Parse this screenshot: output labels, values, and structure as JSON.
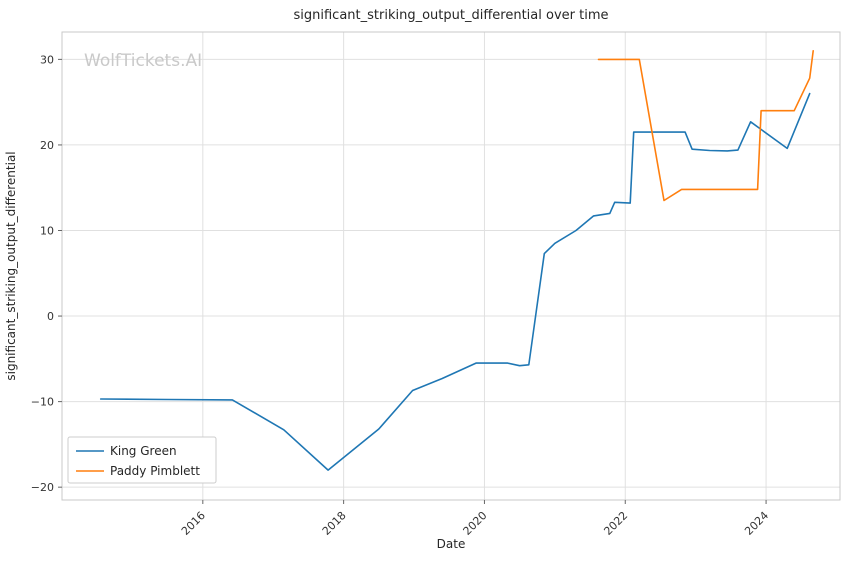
{
  "watermark": {
    "text": "WolfTickets.AI"
  },
  "chart_data": {
    "type": "line",
    "title": "significant_striking_output_differential over time",
    "xlabel": "Date",
    "ylabel": "significant_striking_output_differential",
    "xlim": [
      2014.0,
      2025.05
    ],
    "ylim": [
      -21.5,
      33.2
    ],
    "xticks": [
      2016,
      2018,
      2020,
      2022,
      2024
    ],
    "yticks": [
      -20,
      -10,
      0,
      10,
      20,
      30
    ],
    "grid": true,
    "legend_position": "lower left",
    "colors": {
      "king_green": "#1f77b4",
      "paddy_pimblett": "#ff7f0e",
      "grid": "#e0e0e0",
      "spine": "#c9c9c9"
    },
    "series": [
      {
        "name": "King Green",
        "color": "#1f77b4",
        "points": [
          [
            2014.55,
            -9.7
          ],
          [
            2015.5,
            -9.75
          ],
          [
            2016.42,
            -9.8
          ],
          [
            2017.15,
            -13.3
          ],
          [
            2017.78,
            -18.0
          ],
          [
            2018.5,
            -13.2
          ],
          [
            2018.98,
            -8.7
          ],
          [
            2019.4,
            -7.3
          ],
          [
            2019.88,
            -5.5
          ],
          [
            2020.33,
            -5.5
          ],
          [
            2020.5,
            -5.8
          ],
          [
            2020.63,
            -5.7
          ],
          [
            2020.85,
            7.3
          ],
          [
            2021.0,
            8.5
          ],
          [
            2021.3,
            10.0
          ],
          [
            2021.55,
            11.7
          ],
          [
            2021.78,
            12.0
          ],
          [
            2021.85,
            13.3
          ],
          [
            2022.07,
            13.2
          ],
          [
            2022.12,
            21.5
          ],
          [
            2022.85,
            21.5
          ],
          [
            2022.95,
            19.5
          ],
          [
            2023.2,
            19.35
          ],
          [
            2023.45,
            19.3
          ],
          [
            2023.6,
            19.4
          ],
          [
            2023.78,
            22.7
          ],
          [
            2024.3,
            19.6
          ],
          [
            2024.62,
            26.0
          ]
        ]
      },
      {
        "name": "Paddy Pimblett",
        "color": "#ff7f0e",
        "points": [
          [
            2021.62,
            30.0
          ],
          [
            2022.2,
            30.0
          ],
          [
            2022.55,
            13.5
          ],
          [
            2022.8,
            14.8
          ],
          [
            2023.88,
            14.8
          ],
          [
            2023.93,
            24.0
          ],
          [
            2024.4,
            24.0
          ],
          [
            2024.62,
            27.8
          ],
          [
            2024.67,
            31.0
          ]
        ]
      }
    ]
  }
}
